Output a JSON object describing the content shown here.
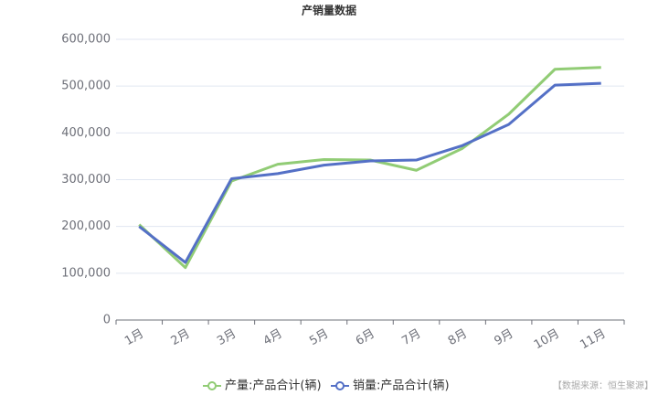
{
  "chart_data": {
    "type": "line",
    "title": "产销量数据",
    "categories": [
      "1月",
      "2月",
      "3月",
      "4月",
      "5月",
      "6月",
      "7月",
      "8月",
      "9月",
      "10月",
      "11月"
    ],
    "series": [
      {
        "name": "产量:产品合计(辆)",
        "color": "#91cc75",
        "values": [
          204000,
          112000,
          297000,
          333000,
          343000,
          342000,
          320000,
          367000,
          440000,
          536000,
          540000
        ]
      },
      {
        "name": "销量:产品合计(辆)",
        "color": "#5470c6",
        "values": [
          200000,
          123000,
          302000,
          313000,
          331000,
          340000,
          342000,
          373000,
          418000,
          502000,
          506000
        ]
      }
    ],
    "ylim": [
      0,
      600000
    ],
    "yticks": [
      0,
      {
        "value": 100000,
        "label": "100,000"
      },
      {
        "value": 200000,
        "label": "200,000"
      },
      {
        "value": 300000,
        "label": "300,000"
      },
      {
        "value": 400000,
        "label": "400,000"
      },
      {
        "value": 500000,
        "label": "500,000"
      },
      {
        "value": 600000,
        "label": "600,000"
      }
    ],
    "grid": true,
    "legend": "bottom",
    "source": "【数据来源：恒生聚源】"
  }
}
